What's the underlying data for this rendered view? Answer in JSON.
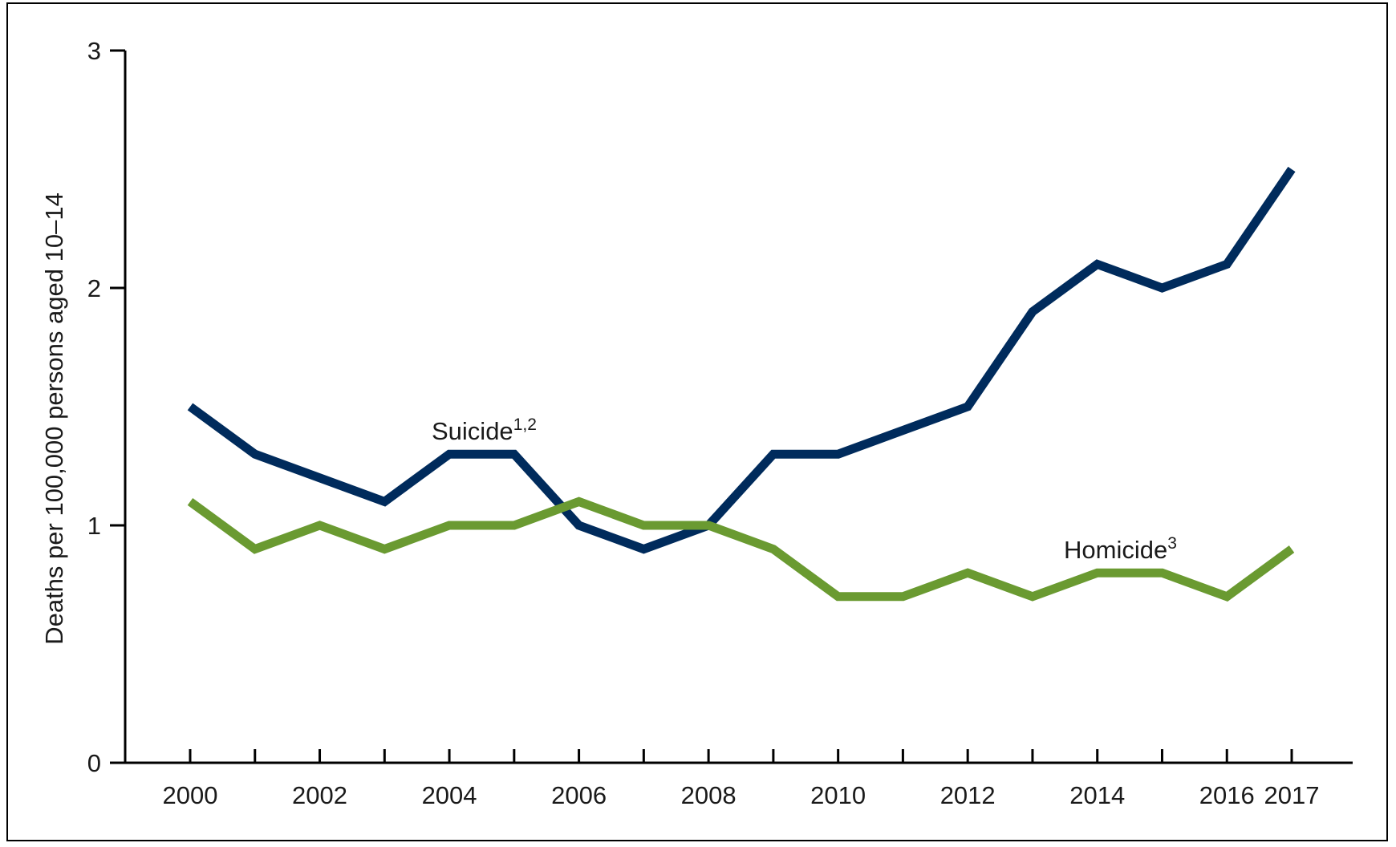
{
  "chart_data": {
    "type": "line",
    "xlabel": "",
    "ylabel": "Deaths per 100,000 persons aged 10–14",
    "x": [
      2000,
      2001,
      2002,
      2003,
      2004,
      2005,
      2006,
      2007,
      2008,
      2009,
      2010,
      2011,
      2012,
      2013,
      2014,
      2015,
      2016,
      2017
    ],
    "x_tick_labels": [
      "2000",
      "2002",
      "2004",
      "2006",
      "2008",
      "2010",
      "2012",
      "2014",
      "2016",
      "2017"
    ],
    "y_tick_labels": [
      "0",
      "1",
      "2",
      "3"
    ],
    "xlim": [
      2000,
      2017
    ],
    "ylim": [
      0,
      3
    ],
    "grid": false,
    "series": [
      {
        "name": "Suicide",
        "superscript": "1,2",
        "color": "#002b5c",
        "values": [
          1.5,
          1.3,
          1.2,
          1.1,
          1.3,
          1.3,
          1.0,
          0.9,
          1.0,
          1.3,
          1.3,
          1.4,
          1.5,
          1.9,
          2.1,
          2.0,
          2.1,
          2.5
        ]
      },
      {
        "name": "Homicide",
        "superscript": "3",
        "color": "#6a9a31",
        "values": [
          1.1,
          0.9,
          1.0,
          0.9,
          1.0,
          1.0,
          1.1,
          1.0,
          1.0,
          0.9,
          0.7,
          0.7,
          0.8,
          0.7,
          0.8,
          0.8,
          0.7,
          0.9
        ]
      }
    ]
  }
}
